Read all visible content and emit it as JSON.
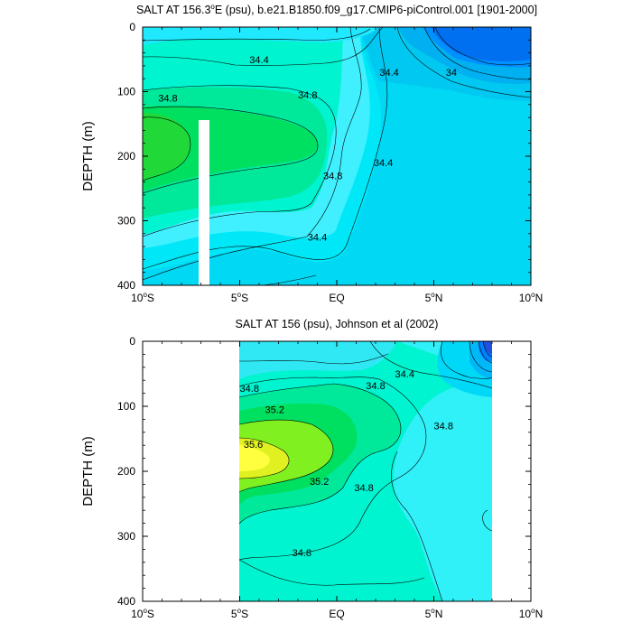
{
  "chart_data": [
    {
      "type": "contour",
      "title": "SALT AT 156.3°E (psu), b.e21.B1850.f09_g17.CMIP6-piControl.001 [1901-2000]",
      "title_parts": {
        "pre": "SALT AT 156.3",
        "deg": "o",
        "post": "E (psu), b.e21.B1850.f09_g17.CMIP6-piControl.001 [1901-2000]"
      },
      "ylabel": "DEPTH (m)",
      "xlim": [
        -10,
        10
      ],
      "ylim": [
        0,
        400
      ],
      "y_inverted": true,
      "x_ticks": [
        {
          "value": -10,
          "num": "10",
          "deg": "o",
          "hemi": "S"
        },
        {
          "value": -5,
          "num": "5",
          "deg": "o",
          "hemi": "S"
        },
        {
          "value": 0,
          "num": "EQ",
          "deg": "",
          "hemi": ""
        },
        {
          "value": 5,
          "num": "5",
          "deg": "o",
          "hemi": "N"
        },
        {
          "value": 10,
          "num": "10",
          "deg": "o",
          "hemi": "N"
        }
      ],
      "y_ticks": [
        0,
        100,
        200,
        300,
        400
      ],
      "data_coverage": {
        "x": [
          -10,
          10
        ],
        "y": [
          5,
          400
        ]
      },
      "contour_labels": [
        {
          "text": "34.4",
          "x": -4.0,
          "y": 50
        },
        {
          "text": "34.4",
          "x": 2.7,
          "y": 70
        },
        {
          "text": "34",
          "x": 5.9,
          "y": 70
        },
        {
          "text": "34.8",
          "x": -8.7,
          "y": 110
        },
        {
          "text": "34.8",
          "x": -1.5,
          "y": 105
        },
        {
          "text": "34.8",
          "x": -0.2,
          "y": 230
        },
        {
          "text": "34.4",
          "x": 2.4,
          "y": 210
        },
        {
          "text": "34.4",
          "x": -1.0,
          "y": 325
        }
      ]
    },
    {
      "type": "contour",
      "title": "SALT AT 156 (psu), Johnson et al (2002)",
      "ylabel": "DEPTH (m)",
      "xlim": [
        -10,
        10
      ],
      "ylim": [
        0,
        400
      ],
      "y_inverted": true,
      "x_ticks": [
        {
          "value": -10,
          "num": "10",
          "deg": "o",
          "hemi": "S"
        },
        {
          "value": -5,
          "num": "5",
          "deg": "o",
          "hemi": "S"
        },
        {
          "value": 0,
          "num": "EQ",
          "deg": "",
          "hemi": ""
        },
        {
          "value": 5,
          "num": "5",
          "deg": "o",
          "hemi": "N"
        },
        {
          "value": 10,
          "num": "10",
          "deg": "o",
          "hemi": "N"
        }
      ],
      "y_ticks": [
        0,
        100,
        200,
        300,
        400
      ],
      "data_coverage": {
        "x": [
          -5,
          8
        ],
        "y": [
          20,
          400
        ]
      },
      "contour_labels": [
        {
          "text": "34.4",
          "x": 3.5,
          "y": 50
        },
        {
          "text": "34.8",
          "x": -4.5,
          "y": 72
        },
        {
          "text": "34.8",
          "x": 2.0,
          "y": 68
        },
        {
          "text": "35.2",
          "x": -3.2,
          "y": 105
        },
        {
          "text": "34.8",
          "x": 5.5,
          "y": 130
        },
        {
          "text": "35.6",
          "x": -4.3,
          "y": 158
        },
        {
          "text": "35.2",
          "x": -0.9,
          "y": 215
        },
        {
          "text": "34.8",
          "x": 1.4,
          "y": 225
        },
        {
          "text": "34.8",
          "x": -1.8,
          "y": 325
        }
      ]
    }
  ]
}
